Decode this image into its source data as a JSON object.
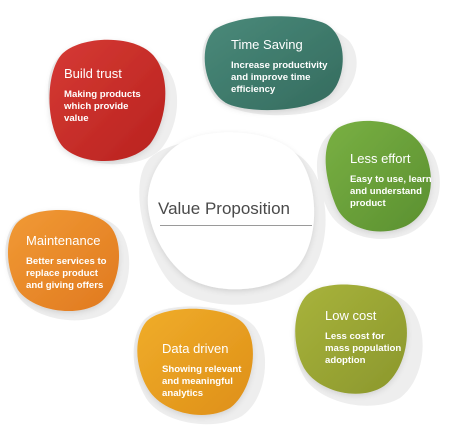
{
  "center": {
    "title": "Value Proposition"
  },
  "items": [
    {
      "key": "build",
      "title": "Build trust",
      "lines": [
        "Making products",
        "which provide",
        "value"
      ],
      "color": "#c9302c"
    },
    {
      "key": "time",
      "title": "Time Saving",
      "lines": [
        "Increase productivity",
        "and improve time",
        "efficiency"
      ],
      "color": "#3f7a6c"
    },
    {
      "key": "effort",
      "title": "Less effort",
      "lines": [
        "Easy to use, learn",
        "and understand",
        "product"
      ],
      "color": "#6a9f3a"
    },
    {
      "key": "cost",
      "title": "Low cost",
      "lines": [
        "Less cost for",
        "mass population",
        "adoption"
      ],
      "color": "#9aa634"
    },
    {
      "key": "data",
      "title": "Data driven",
      "lines": [
        "Showing relevant",
        "and meaningful",
        "analytics"
      ],
      "color": "#e9a020"
    },
    {
      "key": "maint",
      "title": "Maintenance",
      "lines": [
        "Better services to",
        "replace product",
        "and giving offers"
      ],
      "color": "#e9862a"
    }
  ]
}
